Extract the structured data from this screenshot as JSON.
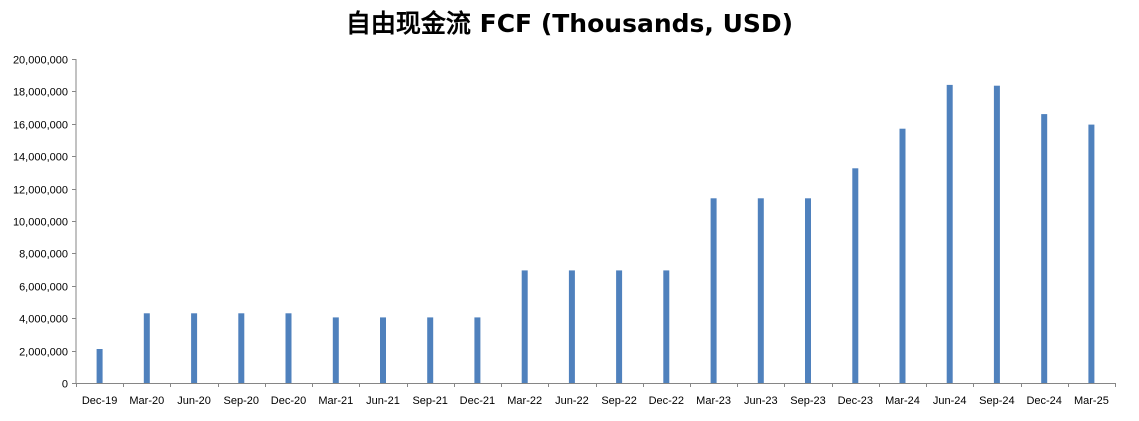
{
  "chart_data": {
    "type": "bar",
    "title": "自由现金流 FCF (Thousands, USD)",
    "xlabel": "",
    "ylabel": "",
    "ylim": [
      0,
      20000000
    ],
    "yticks": [
      0,
      2000000,
      4000000,
      6000000,
      8000000,
      10000000,
      12000000,
      14000000,
      16000000,
      18000000,
      20000000
    ],
    "ytick_labels": [
      "0",
      "2,000,000",
      "4,000,000",
      "6,000,000",
      "8,000,000",
      "10,000,000",
      "12,000,000",
      "14,000,000",
      "16,000,000",
      "18,000,000",
      "20,000,000"
    ],
    "grid": false,
    "bar_color": "#4f81bd",
    "categories": [
      "Dec-19",
      "Mar-20",
      "Jun-20",
      "Sep-20",
      "Dec-20",
      "Mar-21",
      "Jun-21",
      "Sep-21",
      "Dec-21",
      "Mar-22",
      "Jun-22",
      "Sep-22",
      "Dec-22",
      "Mar-23",
      "Jun-23",
      "Sep-23",
      "Dec-23",
      "Mar-24",
      "Jun-24",
      "Sep-24",
      "Dec-24",
      "Mar-25"
    ],
    "values": [
      2100000,
      4300000,
      4300000,
      4300000,
      4300000,
      4050000,
      4050000,
      4050000,
      4050000,
      6950000,
      6950000,
      6950000,
      6950000,
      11400000,
      11400000,
      11400000,
      13250000,
      15700000,
      18400000,
      18350000,
      16600000,
      15950000
    ]
  }
}
